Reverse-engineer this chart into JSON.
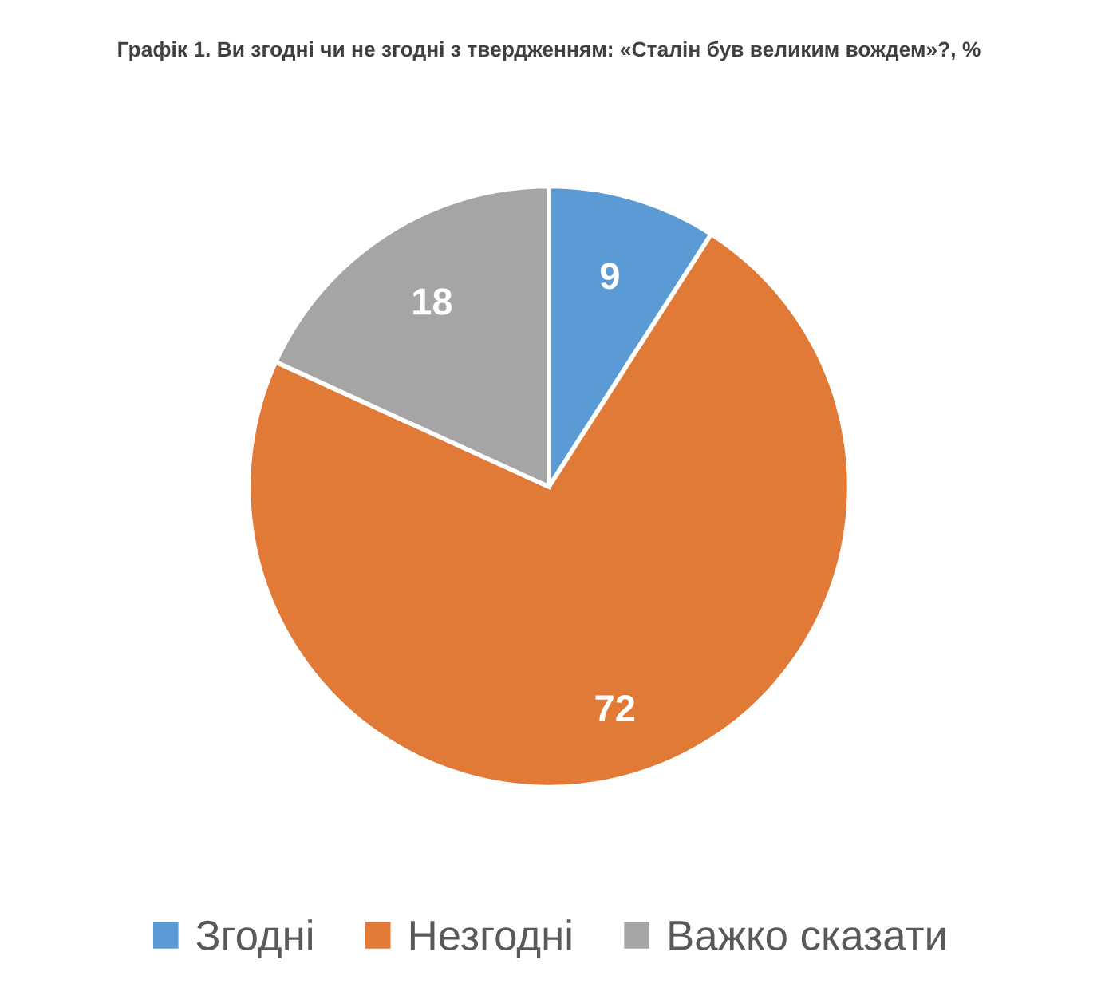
{
  "chart_data": {
    "type": "pie",
    "title": "Графік 1. Ви згодні чи не згодні з твердженням: «Сталін був великим вождем»?, %",
    "categories": [
      "Згодні",
      "Незгодні",
      "Важко сказати"
    ],
    "values": [
      9,
      72,
      18
    ],
    "colors": [
      "#5b9bd5",
      "#e07a36",
      "#a5a5a5"
    ],
    "data_labels": true,
    "legend": "bottom"
  }
}
